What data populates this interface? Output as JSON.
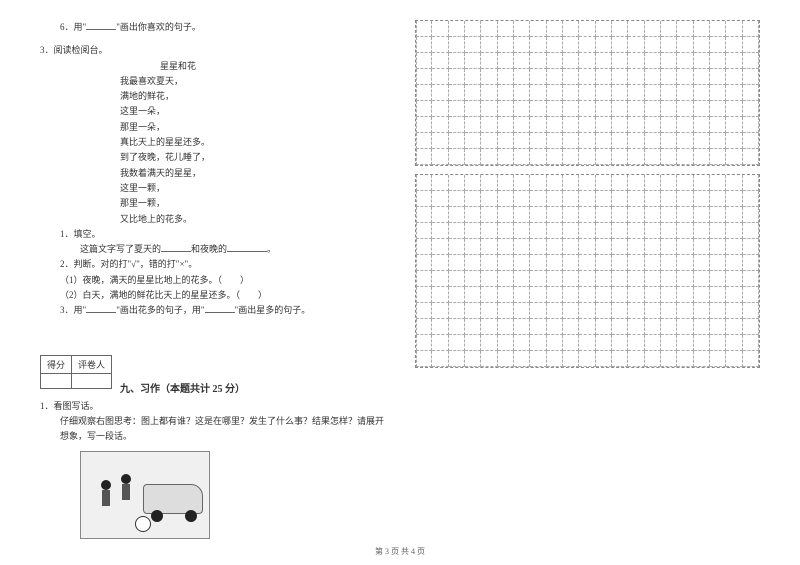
{
  "left": {
    "q6": "6．用\"",
    "q6b": "\"画出你喜欢的句子。",
    "q3": "3．阅读检阅台。",
    "poem_title": "星星和花",
    "poem": [
      "我最喜欢夏天，",
      "满地的鲜花，",
      "这里一朵，",
      "那里一朵，",
      "真比天上的星星还多。",
      "到了夜晚，花儿睡了，",
      "我数着满天的星星，",
      "这里一颗，",
      "那里一颗，",
      "又比地上的花多。"
    ],
    "sub1": "1．填空。",
    "sub1_text_a": "这篇文字写了夏天的",
    "sub1_text_b": "和夜晚的",
    "sub1_text_c": "。",
    "sub2": "2．判断。对的打\"√\"，错的打\"×\"。",
    "sub2_1": "（1）夜晚，满天的星星比地上的花多。（　　）",
    "sub2_2": "（2）白天，满地的鲜花比天上的星星还多。（　　）",
    "sub3_a": "3．用\"",
    "sub3_b": "\"画出花多的句子，用\"",
    "sub3_c": "\"画出星多的句子。",
    "score_col1": "得分",
    "score_col2": "评卷人",
    "section9": "九、习作（本题共计 25 分）",
    "q1_essay": "1．看图写话。",
    "essay_desc": "仔细观察右图思考：图上都有谁？这是在哪里？发生了什么事？结果怎样？请展开想象，写一段话。"
  },
  "grid": {
    "rows1": 9,
    "rows2": 12,
    "cols": 21
  },
  "footer": "第 3 页  共 4 页"
}
